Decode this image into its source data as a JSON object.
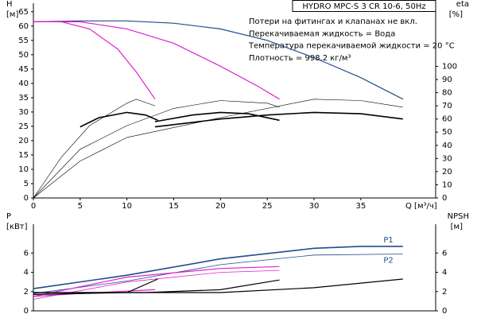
{
  "chart_data": [
    {
      "type": "line",
      "title": "HYDRO MPC-S 3 CR 10-6, 50Hz",
      "annotations": [
        "Потери на фитингах и клапанах не вкл.",
        "Перекачиваемая жидкость = Вода",
        "Температура перекачиваемой жидкости = 20 °C",
        "Плотность = 998.2 кг/м³"
      ],
      "ylabel": "H",
      "ylabel_unit": "[м]",
      "y2label": "eta",
      "y2label_unit": "[%]",
      "xlabel": "Q [м³/ч]",
      "xlim": [
        0,
        43
      ],
      "xticks": [
        0,
        5,
        10,
        15,
        20,
        25,
        30,
        35
      ],
      "ylim": [
        0,
        68
      ],
      "yticks": [
        0,
        5,
        10,
        15,
        20,
        25,
        30,
        35,
        40,
        45,
        50,
        55,
        60,
        65
      ],
      "y2lim": [
        0,
        148
      ],
      "y2ticks": [
        0,
        10,
        20,
        30,
        40,
        50,
        60,
        70,
        80,
        90,
        100
      ],
      "series": [
        {
          "color": "#1f4e8c",
          "width": 1.2,
          "x": [
            0,
            5,
            10,
            15,
            20,
            25,
            30,
            35,
            39.5
          ],
          "values": [
            61.5,
            61.8,
            61.8,
            61,
            59,
            55,
            49,
            42,
            34.5
          ]
        },
        {
          "color": "#e020d0",
          "width": 1.2,
          "x": [
            0,
            3,
            6,
            9,
            11,
            13
          ],
          "values": [
            61.5,
            61.5,
            59,
            52,
            44,
            34.5
          ]
        },
        {
          "color": "#e020d0",
          "width": 1.2,
          "x": [
            0,
            5,
            10,
            15,
            20,
            24,
            26.3
          ],
          "values": [
            61.5,
            61.5,
            59,
            54,
            46,
            39,
            34.5
          ]
        },
        {
          "color": "#000000",
          "width": 0.6,
          "axis": "y2",
          "x": [
            0,
            3,
            6,
            10,
            11,
            13
          ],
          "values": [
            0,
            31,
            55,
            72,
            75,
            70
          ]
        },
        {
          "color": "#000000",
          "width": 0.6,
          "axis": "y2",
          "x": [
            0,
            5,
            10,
            15,
            20,
            25,
            26.3
          ],
          "values": [
            0,
            37,
            55,
            68,
            74,
            72,
            69
          ]
        },
        {
          "color": "#000000",
          "width": 0.6,
          "axis": "y2",
          "x": [
            0,
            5,
            10,
            20,
            30,
            35,
            39.5
          ],
          "values": [
            0,
            28,
            46,
            61,
            75,
            74,
            69
          ]
        },
        {
          "color": "#000000",
          "width": 1.6,
          "axis": "y2",
          "x": [
            5,
            7,
            10,
            12,
            13.3
          ],
          "values": [
            54,
            61,
            65,
            63,
            59
          ]
        },
        {
          "color": "#000000",
          "width": 1.6,
          "axis": "y2",
          "x": [
            13,
            17,
            20,
            23,
            26.3
          ],
          "values": [
            58,
            63,
            65,
            64,
            59
          ]
        },
        {
          "color": "#000000",
          "width": 1.6,
          "axis": "y2",
          "x": [
            13,
            20,
            25,
            30,
            35,
            39.5
          ],
          "values": [
            54,
            60,
            63,
            65,
            64,
            60
          ]
        }
      ]
    },
    {
      "type": "line",
      "ylabel": "P",
      "ylabel_unit": "[кВт]",
      "y2label": "NPSH",
      "y2label_unit": "[м]",
      "xlim": [
        0,
        43
      ],
      "ylim": [
        0,
        9
      ],
      "yticks": [
        0,
        2,
        4,
        6
      ],
      "y2lim": [
        0,
        9
      ],
      "y2ticks": [
        0,
        2,
        4,
        6
      ],
      "series": [
        {
          "name": "P1",
          "color": "#1f4e8c",
          "width": 1.6,
          "x": [
            0,
            10,
            20,
            30,
            35,
            39.5
          ],
          "values": [
            2.3,
            3.7,
            5.4,
            6.5,
            6.7,
            6.7
          ]
        },
        {
          "name": "P2",
          "color": "#1f4e8c",
          "width": 0.8,
          "x": [
            0,
            10,
            20,
            30,
            39.5
          ],
          "values": [
            1.8,
            3.1,
            4.8,
            5.8,
            5.9
          ]
        },
        {
          "color": "#e020d0",
          "width": 1.2,
          "x": [
            0,
            10,
            20,
            26.3
          ],
          "values": [
            1.5,
            3.5,
            4.4,
            4.6
          ]
        },
        {
          "color": "#e020d0",
          "width": 0.8,
          "x": [
            0,
            10,
            20,
            26.3
          ],
          "values": [
            1.2,
            3,
            4,
            4.2
          ]
        },
        {
          "color": "#e020d0",
          "width": 1.2,
          "x": [
            0,
            5,
            13
          ],
          "values": [
            1.5,
            1.8,
            2.2
          ]
        },
        {
          "color": "#000000",
          "width": 1.2,
          "axis": "y2",
          "x": [
            0,
            20,
            30,
            39.5
          ],
          "values": [
            1.9,
            1.9,
            2.4,
            3.3
          ]
        },
        {
          "color": "#000000",
          "width": 1.2,
          "axis": "y2",
          "x": [
            0,
            12,
            20,
            26.3
          ],
          "values": [
            1.9,
            1.9,
            2.2,
            3.2
          ]
        },
        {
          "color": "#000000",
          "width": 1.2,
          "axis": "y2",
          "x": [
            0,
            10,
            13.3
          ],
          "values": [
            1.7,
            1.9,
            3.3
          ]
        }
      ]
    }
  ]
}
